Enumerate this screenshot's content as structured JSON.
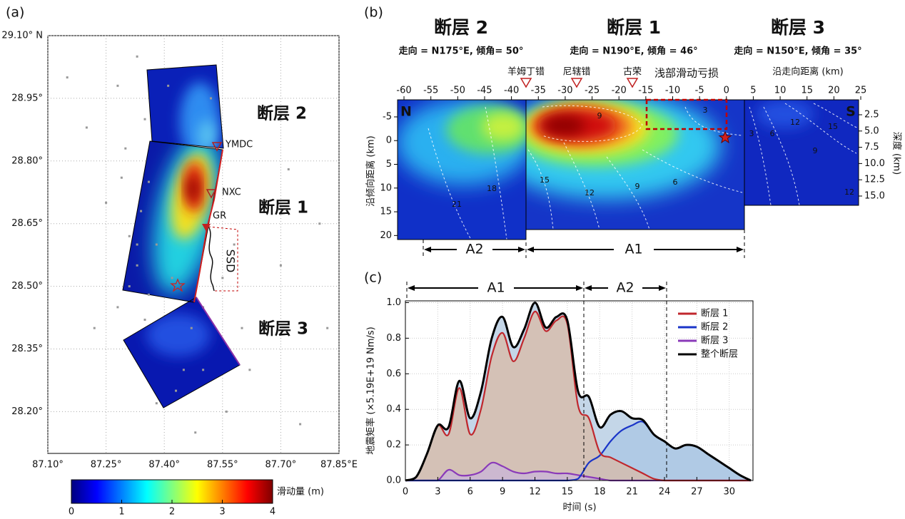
{
  "chart_data": [
    {
      "type": "map",
      "panel_label": "(a)",
      "xlim": [
        87.1,
        87.85
      ],
      "xticks": [
        {
          "value": 87.1,
          "label": "87.10°"
        },
        {
          "value": 87.25,
          "label": "87.25°"
        },
        {
          "value": 87.4,
          "label": "87.40°"
        },
        {
          "value": 87.55,
          "label": "87.55°"
        },
        {
          "value": 87.7,
          "label": "87.70°"
        },
        {
          "value": 87.85,
          "label": "87.85°E"
        }
      ],
      "ylim": [
        28.1,
        29.1
      ],
      "yticks": [
        {
          "value": 29.1,
          "label": "29.10° N"
        },
        {
          "value": 28.95,
          "label": "28.95°"
        },
        {
          "value": 28.8,
          "label": "28.80°"
        },
        {
          "value": 28.65,
          "label": "28.65°"
        },
        {
          "value": 28.5,
          "label": "28.50°"
        },
        {
          "value": 28.35,
          "label": "28.35°"
        },
        {
          "value": 28.2,
          "label": "28.20°"
        }
      ],
      "grid": true,
      "fault_labels": [
        "断层 2",
        "断层 1",
        "断层 3"
      ],
      "stations": [
        "YMDC",
        "NXC",
        "GR"
      ],
      "annotation": "SSD",
      "aftershocks": {
        "color": "#999999",
        "x": [
          87.15,
          87.28,
          87.33,
          87.2,
          87.3,
          87.25,
          87.31,
          87.33,
          87.28,
          87.22,
          87.35,
          87.38,
          87.36,
          87.34,
          87.42,
          87.45,
          87.5,
          87.55,
          87.58,
          87.6,
          87.62,
          87.56,
          87.48,
          87.38,
          87.7,
          87.72,
          87.66,
          87.8,
          87.82,
          87.75,
          87.35,
          87.41,
          87.52,
          87.31,
          87.33,
          87.36,
          87.47,
          87.5,
          87.43,
          87.29
        ],
        "y": [
          29.0,
          28.98,
          29.05,
          28.88,
          28.83,
          28.7,
          28.62,
          28.55,
          28.45,
          28.4,
          28.42,
          28.6,
          28.75,
          28.68,
          28.52,
          28.3,
          28.45,
          28.52,
          28.6,
          28.4,
          28.3,
          28.2,
          28.15,
          28.22,
          28.55,
          28.78,
          28.92,
          28.65,
          28.4,
          28.17,
          28.9,
          28.98,
          28.95,
          28.5,
          28.6,
          28.48,
          28.4,
          28.3,
          28.25,
          28.76
        ]
      },
      "colorbar": {
        "label": "滑动量 (m)",
        "lim": [
          0,
          4
        ],
        "ticks": [
          0,
          1,
          2,
          3,
          4
        ]
      }
    },
    {
      "type": "slip-section",
      "panel_label": "(b)",
      "fault_titles": [
        "断层 2",
        "断层 1",
        "断层 3"
      ],
      "fault_params": [
        "走向 = N175°E, 倾角= 50°",
        "走向 = N190°E, 倾角 = 46°",
        "走向 = N150°E, 倾角 = 35°"
      ],
      "place_labels": [
        "羊姆丁错",
        "尼辖错",
        "古荣"
      ],
      "box_label": "浅部滑动亏损",
      "xlabel": "沿走向距离 (km)",
      "ylabel": "沿倾向距离 (km)",
      "y2label": "深度 (km)",
      "xlim": [
        -61.2,
        24.6
      ],
      "xticks": [
        -60,
        -55,
        -50,
        -45,
        -40,
        -35,
        -30,
        -25,
        -20,
        -15,
        -10,
        -5,
        0,
        5,
        10,
        15,
        20,
        25
      ],
      "ylim": [
        -8.6,
        21
      ],
      "yticks": [
        -5,
        0,
        5,
        10,
        15,
        20
      ],
      "y2lim": [
        0.2,
        21.8
      ],
      "y2ticks": [
        2.5,
        {
          "value": 5,
          "label": "5.0"
        },
        7.5,
        {
          "value": 10,
          "label": "10.0"
        },
        12.5,
        {
          "value": 15,
          "label": "15.0"
        }
      ],
      "ends": [
        "N",
        "S"
      ],
      "segments": [
        "A2",
        "A1"
      ],
      "contour_labels": [
        9,
        15,
        12,
        9,
        6,
        3,
        18,
        21,
        3,
        6,
        12,
        15,
        9,
        12
      ]
    },
    {
      "type": "line",
      "panel_label": "(c)",
      "xlabel": "时间 (s)",
      "ylabel": "地震矩率 (×5.19E+19 Nm/s)",
      "x": [
        0,
        1,
        2,
        3,
        4,
        5,
        6,
        7,
        8,
        9,
        10,
        11,
        12,
        13,
        14,
        15,
        16,
        17,
        18,
        19,
        20,
        21,
        22,
        23,
        24,
        25,
        26,
        27,
        28,
        29,
        30,
        31,
        32
      ],
      "series": [
        {
          "name": "断层 1",
          "color": "#c0272d",
          "fill": "#d9b9a6",
          "values": [
            0,
            0.02,
            0.15,
            0.31,
            0.26,
            0.52,
            0.26,
            0.4,
            0.7,
            0.83,
            0.67,
            0.8,
            0.95,
            0.84,
            0.9,
            0.88,
            0.42,
            0.35,
            0.16,
            0.13,
            0.1,
            0.07,
            0.04,
            0.01,
            0,
            0,
            0,
            0,
            0,
            0,
            0,
            0,
            0
          ]
        },
        {
          "name": "断层 2",
          "color": "#1a35c8",
          "fill": "#a9c6e4",
          "values": [
            0,
            0,
            0,
            0,
            0,
            0,
            0,
            0,
            0,
            0,
            0,
            0,
            0,
            0,
            0,
            0,
            0.01,
            0.1,
            0.14,
            0.22,
            0.28,
            0.31,
            0.33,
            0.26,
            0.22,
            0.18,
            0.2,
            0.19,
            0.15,
            0.11,
            0.07,
            0.03,
            0
          ]
        },
        {
          "name": "断层 3",
          "color": "#8a3ab9",
          "fill": "#c9b4d8",
          "values": [
            0,
            0,
            0,
            0,
            0.06,
            0.03,
            0.03,
            0.05,
            0.1,
            0.08,
            0.05,
            0.04,
            0.05,
            0.05,
            0.04,
            0.04,
            0.03,
            0.02,
            0.01,
            0,
            0,
            0,
            0,
            0,
            0,
            0,
            0,
            0,
            0,
            0,
            0,
            0,
            0
          ]
        },
        {
          "name": "整个断层",
          "color": "#000000",
          "fill": "#c4d6e8",
          "values": [
            0,
            0.02,
            0.15,
            0.31,
            0.3,
            0.56,
            0.35,
            0.5,
            0.8,
            0.92,
            0.75,
            0.85,
            1.0,
            0.86,
            0.92,
            0.9,
            0.5,
            0.47,
            0.3,
            0.37,
            0.39,
            0.35,
            0.34,
            0.26,
            0.22,
            0.18,
            0.2,
            0.19,
            0.15,
            0.11,
            0.07,
            0.03,
            0
          ]
        }
      ],
      "xlim": [
        0,
        32.2
      ],
      "xticks": [
        0,
        3,
        6,
        9,
        12,
        15,
        18,
        21,
        24,
        27,
        30
      ],
      "ylim": [
        0,
        1.01
      ],
      "yticks": [
        {
          "value": 0,
          "label": "0.0"
        },
        0.2,
        0.4,
        0.6,
        0.8,
        {
          "value": 1,
          "label": "1.0"
        }
      ],
      "grid": true,
      "legend": "upper right",
      "segments": [
        "A1",
        "A2"
      ]
    }
  ]
}
